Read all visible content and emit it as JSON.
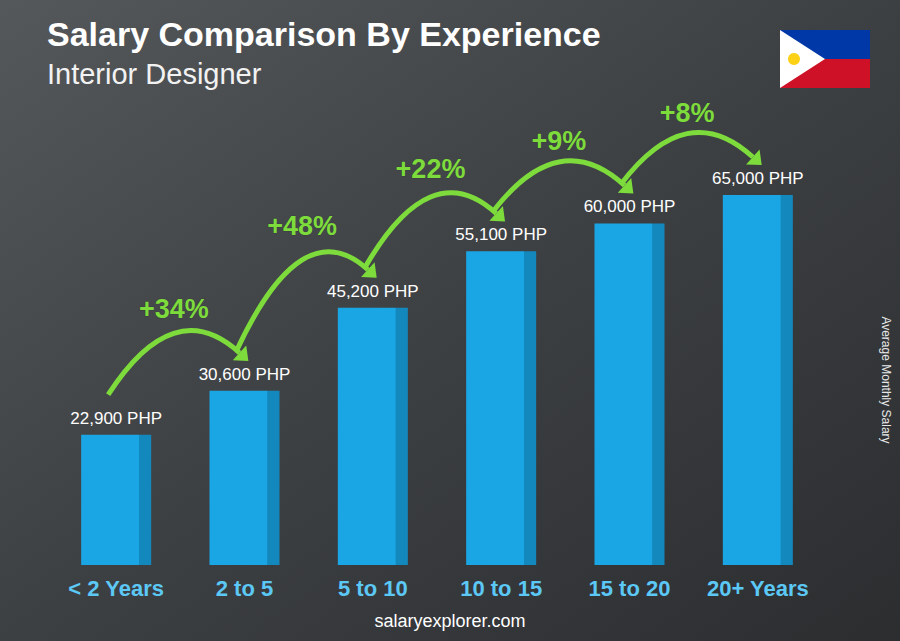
{
  "chart_data": {
    "type": "bar",
    "title": "Salary Comparison By Experience",
    "subtitle": "Interior Designer",
    "ylabel": "Average Monthly Salary",
    "source": "salaryexplorer.com",
    "categories": [
      "< 2 Years",
      "2 to 5",
      "5 to 10",
      "10 to 15",
      "15 to 20",
      "20+ Years"
    ],
    "values": [
      22900,
      30600,
      45200,
      55100,
      60000,
      65000
    ],
    "value_labels": [
      "22,900 PHP",
      "30,600 PHP",
      "45,200 PHP",
      "55,100 PHP",
      "60,000 PHP",
      "65,000 PHP"
    ],
    "increases": [
      34,
      48,
      22,
      9,
      8
    ],
    "increase_labels": [
      "+34%",
      "+48%",
      "+22%",
      "+9%",
      "+8%"
    ],
    "color": "#1aa6e4",
    "ylim": [
      0,
      65000
    ],
    "grid": false,
    "data_labels": true,
    "tick_labels": "x"
  }
}
